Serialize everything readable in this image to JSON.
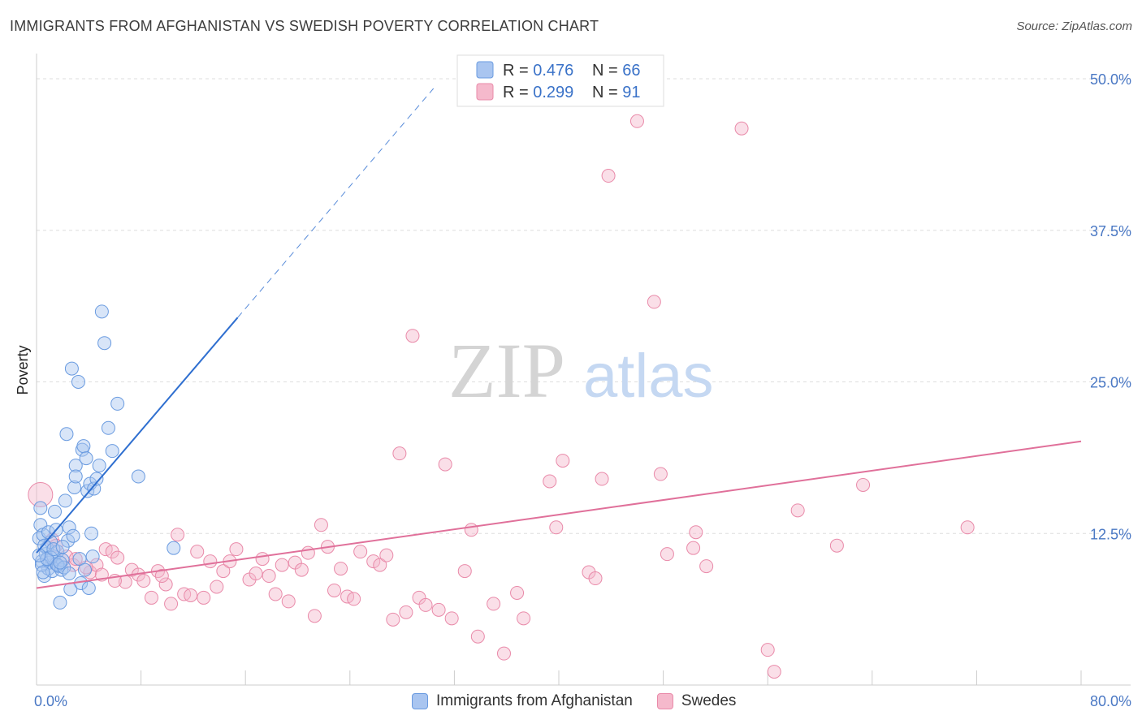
{
  "title": "IMMIGRANTS FROM AFGHANISTAN VS SWEDISH POVERTY CORRELATION CHART",
  "source": "Source: ZipAtlas.com",
  "watermark": {
    "zip": "ZIP",
    "atlas": "atlas"
  },
  "colors": {
    "blue_fill": "#a9c5f0",
    "blue_stroke": "#6a9be0",
    "blue_line": "#2f6fd0",
    "pink_fill": "#f5b9cc",
    "pink_stroke": "#e98aa9",
    "pink_line": "#e0709a",
    "axis_text": "#4a78c4",
    "grid": "#dddddd"
  },
  "legend": {
    "rows": [
      {
        "r_label": "R = ",
        "r_value": "0.476",
        "n_label": "N = ",
        "n_value": "66"
      },
      {
        "r_label": "R = ",
        "r_value": "0.299",
        "n_label": "N = ",
        "n_value": "91"
      }
    ]
  },
  "bottom_legend": {
    "series1": "Immigrants from Afghanistan",
    "series2": "Swedes"
  },
  "chart_data": {
    "type": "scatter",
    "xlabel": "",
    "ylabel": "Poverty",
    "xlim": [
      0,
      80
    ],
    "ylim": [
      0,
      50
    ],
    "x_tick_labels": [
      "0.0%",
      "80.0%"
    ],
    "y_ticks": [
      12.5,
      25.0,
      37.5,
      50.0
    ],
    "y_tick_labels": [
      "12.5%",
      "25.0%",
      "37.5%",
      "50.0%"
    ],
    "grid": "horizontal dashed",
    "series": [
      {
        "name": "Immigrants from Afghanistan",
        "trend": {
          "x0": 0,
          "y0": 10.9,
          "x1": 15.4,
          "y1": 30.3,
          "dash_to_x": 30.4
        },
        "points": [
          [
            0.2,
            12.1
          ],
          [
            0.3,
            13.2
          ],
          [
            0.4,
            10.2
          ],
          [
            0.5,
            12.4
          ],
          [
            0.6,
            9.0
          ],
          [
            0.7,
            10.8
          ],
          [
            0.8,
            11.3
          ],
          [
            0.9,
            9.6
          ],
          [
            1.0,
            10.1
          ],
          [
            1.1,
            11.8
          ],
          [
            1.2,
            9.4
          ],
          [
            1.3,
            10.6
          ],
          [
            1.4,
            14.3
          ],
          [
            1.5,
            10.0
          ],
          [
            1.6,
            11.0
          ],
          [
            1.7,
            9.8
          ],
          [
            1.8,
            6.8
          ],
          [
            1.9,
            9.5
          ],
          [
            2.0,
            10.3
          ],
          [
            2.2,
            15.2
          ],
          [
            2.3,
            20.7
          ],
          [
            2.4,
            11.9
          ],
          [
            2.5,
            13.0
          ],
          [
            2.6,
            7.9
          ],
          [
            2.7,
            26.1
          ],
          [
            2.8,
            12.3
          ],
          [
            2.9,
            16.3
          ],
          [
            3.0,
            18.1
          ],
          [
            3.0,
            17.2
          ],
          [
            3.2,
            25.0
          ],
          [
            3.3,
            10.4
          ],
          [
            3.4,
            8.4
          ],
          [
            3.5,
            19.4
          ],
          [
            3.6,
            19.7
          ],
          [
            3.7,
            9.5
          ],
          [
            3.8,
            18.7
          ],
          [
            3.9,
            16.0
          ],
          [
            4.0,
            8.0
          ],
          [
            4.1,
            16.6
          ],
          [
            4.2,
            12.5
          ],
          [
            4.3,
            10.6
          ],
          [
            4.4,
            16.2
          ],
          [
            4.6,
            17.0
          ],
          [
            4.8,
            18.1
          ],
          [
            5.0,
            30.8
          ],
          [
            5.2,
            28.2
          ],
          [
            5.5,
            21.2
          ],
          [
            5.8,
            19.3
          ],
          [
            6.2,
            23.2
          ],
          [
            7.8,
            17.2
          ],
          [
            10.5,
            11.3
          ],
          [
            0.3,
            14.6
          ],
          [
            0.6,
            11.5
          ],
          [
            0.9,
            12.6
          ],
          [
            1.1,
            10.5
          ],
          [
            1.6,
            9.9
          ],
          [
            2.1,
            9.7
          ],
          [
            0.4,
            9.9
          ],
          [
            0.8,
            10.4
          ],
          [
            1.3,
            11.2
          ],
          [
            2.0,
            11.4
          ],
          [
            1.5,
            12.8
          ],
          [
            0.2,
            10.7
          ],
          [
            0.5,
            9.3
          ],
          [
            1.8,
            10.1
          ],
          [
            2.5,
            9.2
          ]
        ]
      },
      {
        "name": "Swedes",
        "trend": {
          "x0": 0,
          "y0": 8.0,
          "x1": 80,
          "y1": 20.1
        },
        "points": [
          [
            0.3,
            15.7
          ],
          [
            1.2,
            12.0
          ],
          [
            1.5,
            11.5
          ],
          [
            2.3,
            10.6
          ],
          [
            2.8,
            9.9
          ],
          [
            3.0,
            10.4
          ],
          [
            4.1,
            9.3
          ],
          [
            4.6,
            9.9
          ],
          [
            5.0,
            9.1
          ],
          [
            5.3,
            11.2
          ],
          [
            5.8,
            11.0
          ],
          [
            6.2,
            10.5
          ],
          [
            6.8,
            8.5
          ],
          [
            7.3,
            9.5
          ],
          [
            7.8,
            9.1
          ],
          [
            8.2,
            8.6
          ],
          [
            8.8,
            7.2
          ],
          [
            9.3,
            9.4
          ],
          [
            9.9,
            8.3
          ],
          [
            10.3,
            6.7
          ],
          [
            10.8,
            12.4
          ],
          [
            11.3,
            7.5
          ],
          [
            11.8,
            7.4
          ],
          [
            12.3,
            11.0
          ],
          [
            12.8,
            7.2
          ],
          [
            13.3,
            10.2
          ],
          [
            13.8,
            8.1
          ],
          [
            14.3,
            9.4
          ],
          [
            14.8,
            10.2
          ],
          [
            15.3,
            11.2
          ],
          [
            16.3,
            8.7
          ],
          [
            16.8,
            9.2
          ],
          [
            17.3,
            10.4
          ],
          [
            17.8,
            9.0
          ],
          [
            18.3,
            7.5
          ],
          [
            18.8,
            9.9
          ],
          [
            19.3,
            6.9
          ],
          [
            19.8,
            10.1
          ],
          [
            20.3,
            9.5
          ],
          [
            20.8,
            10.9
          ],
          [
            21.3,
            5.7
          ],
          [
            21.8,
            13.2
          ],
          [
            22.3,
            11.4
          ],
          [
            22.8,
            7.8
          ],
          [
            23.3,
            9.6
          ],
          [
            23.8,
            7.3
          ],
          [
            24.3,
            7.1
          ],
          [
            24.8,
            11.0
          ],
          [
            25.8,
            10.2
          ],
          [
            26.3,
            9.9
          ],
          [
            26.8,
            10.7
          ],
          [
            27.3,
            5.4
          ],
          [
            27.8,
            19.1
          ],
          [
            28.3,
            6.0
          ],
          [
            28.8,
            28.8
          ],
          [
            29.3,
            7.2
          ],
          [
            29.8,
            6.6
          ],
          [
            30.8,
            6.2
          ],
          [
            31.3,
            18.2
          ],
          [
            31.8,
            5.5
          ],
          [
            32.8,
            9.4
          ],
          [
            33.3,
            12.8
          ],
          [
            33.8,
            4.0
          ],
          [
            35.0,
            6.7
          ],
          [
            35.8,
            2.6
          ],
          [
            36.8,
            7.6
          ],
          [
            37.3,
            5.5
          ],
          [
            39.3,
            16.8
          ],
          [
            39.8,
            13.0
          ],
          [
            40.3,
            18.5
          ],
          [
            42.3,
            9.3
          ],
          [
            42.8,
            8.8
          ],
          [
            43.3,
            17.0
          ],
          [
            43.8,
            42.0
          ],
          [
            46.0,
            46.5
          ],
          [
            47.3,
            31.6
          ],
          [
            47.8,
            17.4
          ],
          [
            48.3,
            10.8
          ],
          [
            50.3,
            11.3
          ],
          [
            50.5,
            12.6
          ],
          [
            51.3,
            9.8
          ],
          [
            54.0,
            45.9
          ],
          [
            56.0,
            2.9
          ],
          [
            56.5,
            1.1
          ],
          [
            58.3,
            14.4
          ],
          [
            61.3,
            11.5
          ],
          [
            63.3,
            16.5
          ],
          [
            71.3,
            13.0
          ],
          [
            3.8,
            9.7
          ],
          [
            6.0,
            8.6
          ],
          [
            9.6,
            9.0
          ]
        ]
      }
    ]
  }
}
